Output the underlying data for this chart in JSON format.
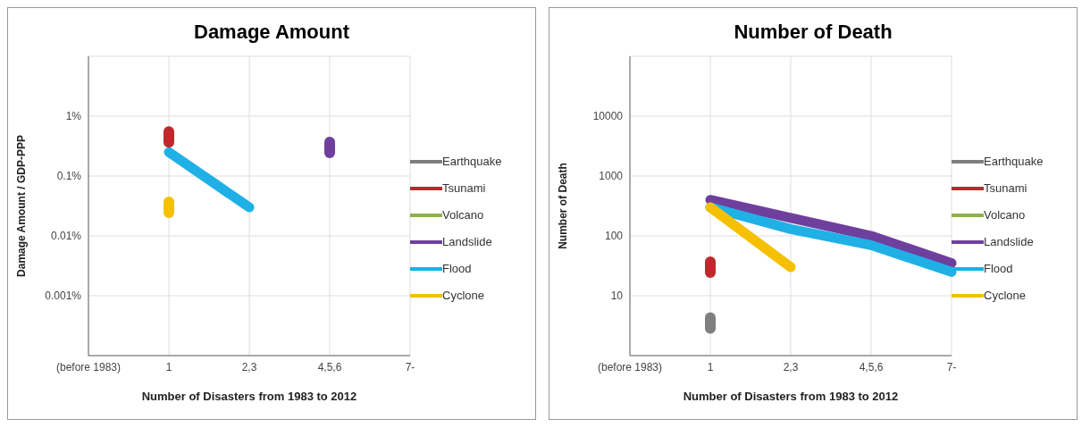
{
  "chart_data": [
    {
      "type": "line",
      "title": "Damage Amount",
      "xlabel": "Number of Disasters from 1983 to 2012",
      "ylabel": "Damage Amount / GDP-PPP",
      "categories": [
        "(before 1983)",
        "1",
        "2,3",
        "4,5,6",
        "7-"
      ],
      "log": "y",
      "ylim": [
        0.0001,
        10
      ],
      "yticks": [
        {
          "value": 0.001,
          "label": "0.001%"
        },
        {
          "value": 0.01,
          "label": "0.01%"
        },
        {
          "value": 0.1,
          "label": "0.1%"
        },
        {
          "value": 1,
          "label": "1%"
        }
      ],
      "grid": true,
      "legend": "right",
      "marker": "none",
      "series": [
        {
          "name": "Earthquake",
          "color": "#7f7f7f",
          "values": [
            null,
            null,
            null,
            null,
            null
          ]
        },
        {
          "name": "Tsunami",
          "color": "#c0282d",
          "type": "scatter",
          "marker": "square",
          "values": [
            null,
            0.45,
            null,
            null,
            null
          ]
        },
        {
          "name": "Volcano",
          "color": "#8db04a",
          "values": [
            null,
            null,
            null,
            null,
            null
          ]
        },
        {
          "name": "Landslide",
          "color": "#6f3f9e",
          "type": "scatter",
          "marker": "square",
          "values": [
            null,
            null,
            null,
            0.3,
            null
          ]
        },
        {
          "name": "Flood",
          "color": "#1fb0e6",
          "values": [
            null,
            0.25,
            0.03,
            null,
            null
          ]
        },
        {
          "name": "Cyclone",
          "color": "#f5c000",
          "type": "scatter",
          "marker": "square",
          "values": [
            null,
            0.03,
            null,
            null,
            null
          ]
        }
      ]
    },
    {
      "type": "line",
      "title": "Number of Death",
      "xlabel": "Number of Disasters from 1983 to 2012",
      "ylabel": "Number of Death",
      "categories": [
        "(before 1983)",
        "1",
        "2,3",
        "4,5,6",
        "7-"
      ],
      "log": "y",
      "ylim": [
        1,
        100000
      ],
      "yticks": [
        10,
        100,
        1000,
        10000
      ],
      "grid": true,
      "legend": "right",
      "marker": "none",
      "series": [
        {
          "name": "Earthquake",
          "color": "#7f7f7f",
          "type": "scatter",
          "marker": "square",
          "values": [
            null,
            3.5,
            null,
            null,
            null
          ]
        },
        {
          "name": "Tsunami",
          "color": "#c0282d",
          "type": "scatter",
          "marker": "square",
          "values": [
            null,
            30,
            null,
            null,
            null
          ]
        },
        {
          "name": "Volcano",
          "color": "#8db04a",
          "values": [
            null,
            null,
            null,
            null,
            null
          ]
        },
        {
          "name": "Landslide",
          "color": "#6f3f9e",
          "values": [
            null,
            400,
            200,
            100,
            35
          ]
        },
        {
          "name": "Flood",
          "color": "#1fb0e6",
          "values": [
            null,
            300,
            130,
            70,
            25
          ]
        },
        {
          "name": "Cyclone",
          "color": "#f5c000",
          "values": [
            null,
            300,
            30,
            null,
            null
          ]
        }
      ]
    }
  ]
}
